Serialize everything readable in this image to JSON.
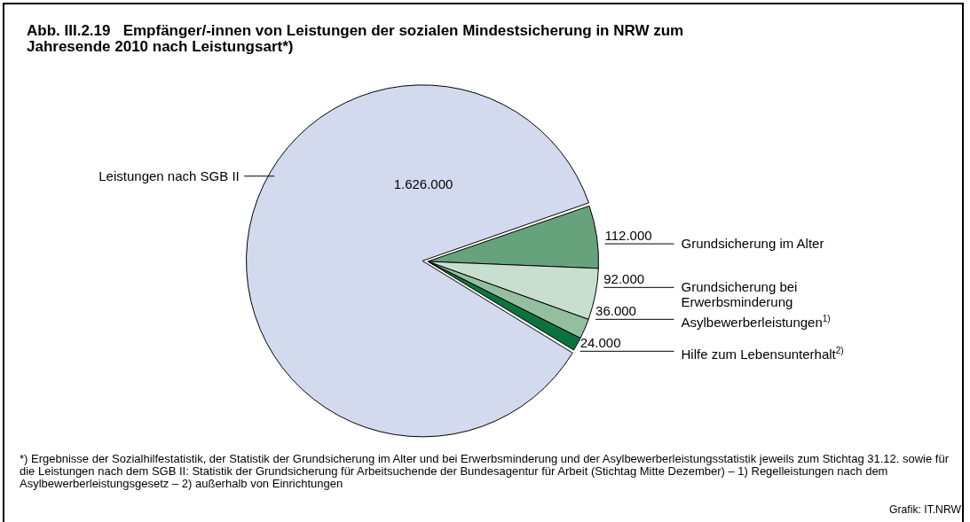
{
  "chart_data": {
    "type": "pie",
    "title": "Abb. III.2.19   Empfänger/-innen von Leistungen der sozialen Mindestsicherung in NRW zum Jahresende 2010 nach Leistungsart*)",
    "categories": [
      "Grundsicherung im Alter",
      "Grundsicherung bei Erwerbsminderung",
      "Asylbewerberleistungen$^{1)}$",
      "Hilfe zum Lebensunterhalt$^{2)}$",
      "Leistungen nach SGB II"
    ],
    "values": [
      112000,
      92000,
      36000,
      24000,
      1626000
    ],
    "colors": [
      "#66a37c",
      "#c8dfcf",
      "#93bf9f",
      "#0b7340",
      "#d4daee"
    ],
    "value_labels": [
      "112.000",
      "92.000",
      "36.000",
      "24.000",
      "1.626.000"
    ],
    "annotations": [
      "*) Ergebnisse der Sozialhilfestatistik, der Statistik der Grundsicherung im Alter und bei Erwerbsminderung und der Asylbewerberleistungsstatistik jeweils zum Stichtag 31.12. sowie für die Leistungen nach dem SGB II: Statistik der Grundsicherung für Arbeitsuchende der Bundesagentur für Arbeit (Stichtag Mitte Dezember) – 1) Regelleistungen nach dem Asylbewerberleistungsgesetz – 2) außerhalb von Einrichtungen",
      "Grafik: IT.NRW"
    ]
  }
}
